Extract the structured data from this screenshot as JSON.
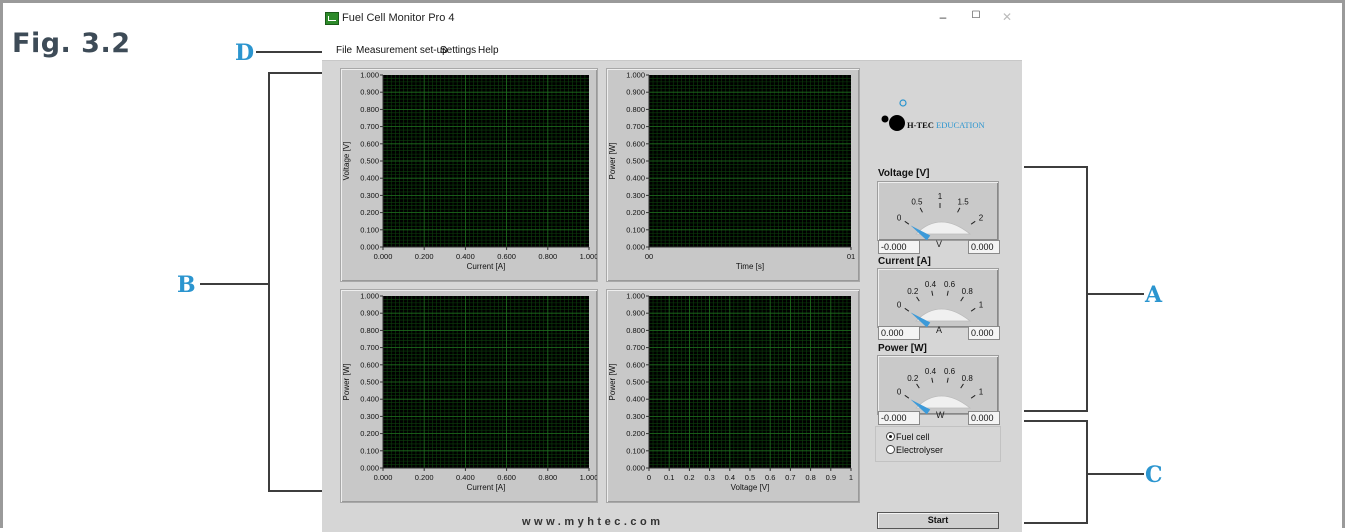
{
  "figure": {
    "label": "Fig. 3.2"
  },
  "callouts": {
    "a": "A",
    "b": "B",
    "c": "C",
    "d": "D"
  },
  "window": {
    "title": "Fuel Cell Monitor Pro 4",
    "controls": {
      "minimize": "–",
      "maximize": "☐",
      "close": "✕"
    }
  },
  "menu": {
    "items": [
      "File",
      "Measurement set-up",
      "Settings",
      "Help"
    ]
  },
  "logo": {
    "brand": "H-TEC",
    "sub": "EDUCATION"
  },
  "colors": {
    "plot_bg": "#000000",
    "grid_minor": "#0d3f0d",
    "grid_major": "#1e6d1e",
    "accent": "#2b95cf",
    "needle": "#3c9ad9"
  },
  "chart_data": [
    {
      "type": "line",
      "title": "",
      "ylabel": "Voltage [V]",
      "xlabel": "Current [A]",
      "xlim": [
        0,
        1
      ],
      "ylim": [
        0,
        1
      ],
      "x_ticks": [
        "0.000",
        "0.200",
        "0.400",
        "0.600",
        "0.800",
        "1.000"
      ],
      "y_ticks": [
        "0.000",
        "0.100",
        "0.200",
        "0.300",
        "0.400",
        "0.500",
        "0.600",
        "0.700",
        "0.800",
        "0.900",
        "1.000"
      ],
      "series": []
    },
    {
      "type": "line",
      "title": "",
      "ylabel": "Power [W]",
      "xlabel": "Time [s]",
      "xlim": [
        0,
        1
      ],
      "ylim": [
        0,
        1
      ],
      "x_ticks": [
        "00",
        "01"
      ],
      "y_ticks": [
        "0.000",
        "0.100",
        "0.200",
        "0.300",
        "0.400",
        "0.500",
        "0.600",
        "0.700",
        "0.800",
        "0.900",
        "1.000"
      ],
      "series": []
    },
    {
      "type": "line",
      "title": "",
      "ylabel": "Power [W]",
      "xlabel": "Current [A]",
      "xlim": [
        0,
        1
      ],
      "ylim": [
        0,
        1
      ],
      "x_ticks": [
        "0.000",
        "0.200",
        "0.400",
        "0.600",
        "0.800",
        "1.000"
      ],
      "y_ticks": [
        "0.000",
        "0.100",
        "0.200",
        "0.300",
        "0.400",
        "0.500",
        "0.600",
        "0.700",
        "0.800",
        "0.900",
        "1.000"
      ],
      "series": []
    },
    {
      "type": "line",
      "title": "",
      "ylabel": "Power [W]",
      "xlabel": "Voltage [V]",
      "xlim": [
        0,
        1
      ],
      "ylim": [
        0,
        1
      ],
      "x_ticks": [
        "0",
        "0.1",
        "0.2",
        "0.3",
        "0.4",
        "0.5",
        "0.6",
        "0.7",
        "0.8",
        "0.9",
        "1"
      ],
      "y_ticks": [
        "0.000",
        "0.100",
        "0.200",
        "0.300",
        "0.400",
        "0.500",
        "0.600",
        "0.700",
        "0.800",
        "0.900",
        "1.000"
      ],
      "series": []
    }
  ],
  "meters": [
    {
      "label": "Voltage [V]",
      "unit": "V",
      "min_value": "-0.000",
      "max_value": "0.000",
      "scale": [
        "0",
        "0.5",
        "1",
        "1.5",
        "2"
      ],
      "range": [
        0,
        2
      ],
      "value": 0
    },
    {
      "label": "Current [A]",
      "unit": "A",
      "min_value": "0.000",
      "max_value": "0.000",
      "scale": [
        "0",
        "0.2",
        "0.4",
        "0.6",
        "0.8",
        "1"
      ],
      "range": [
        0,
        1
      ],
      "value": 0
    },
    {
      "label": "Power [W]",
      "unit": "W",
      "min_value": "-0.000",
      "max_value": "0.000",
      "scale": [
        "0",
        "0.2",
        "0.4",
        "0.6",
        "0.8",
        "1"
      ],
      "range": [
        0,
        1
      ],
      "value": 0
    }
  ],
  "mode": {
    "options": [
      "Fuel cell",
      "Electrolyser"
    ],
    "selected": "Fuel cell"
  },
  "footer": {
    "url": "www.myhtec.com"
  },
  "start_button": {
    "label": "Start"
  }
}
